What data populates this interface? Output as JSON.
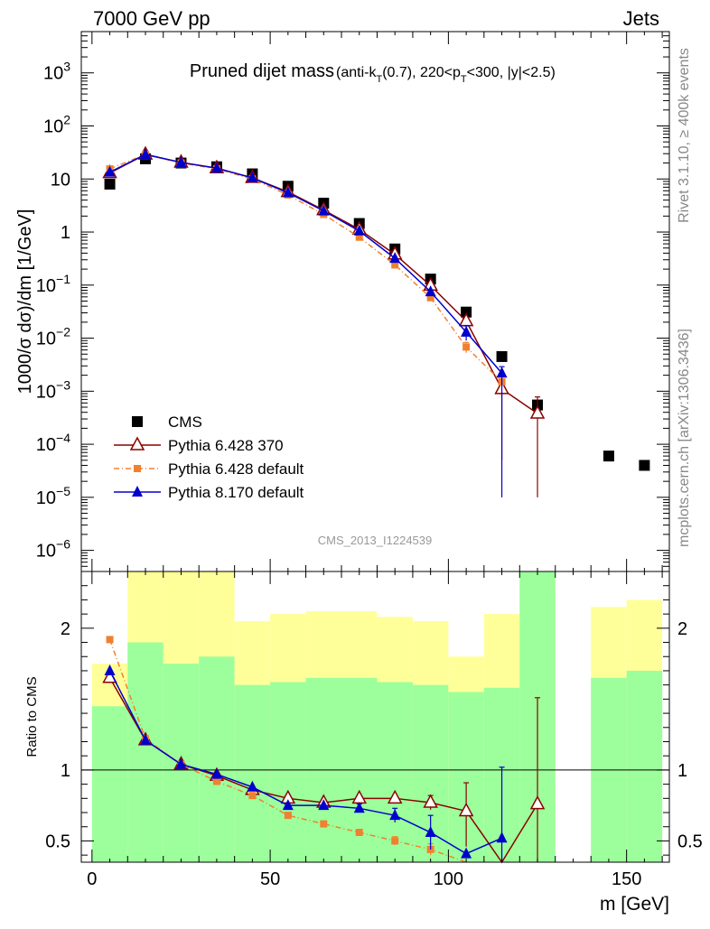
{
  "header": {
    "left": "7000 GeV pp",
    "right": "Jets"
  },
  "side_labels": {
    "rivet": "Rivet 3.1.10, ≥ 400k events",
    "source": "mcplots.cern.ch [arXiv:1306.3436]"
  },
  "chart_data": [
    {
      "type": "scatter",
      "panel": "main",
      "title": "Pruned dijet mass",
      "title_cut": {
        "pre": "(anti-k",
        "sub1": "T",
        "mid": "(0.7), 220<p",
        "sub2": "T",
        "post": "<300, |y|<2.5)"
      },
      "watermark": "CMS_2013_I1224539",
      "ylabel": "1000/σ dσ)/dm [1/GeV]",
      "yscale": "log",
      "xlim": [
        -3,
        162
      ],
      "ylim": [
        4e-07,
        6000
      ],
      "x_ticks": [
        0,
        50,
        100,
        150
      ],
      "y_ticks": [
        {
          "v": 1e-06,
          "base": "10",
          "exp": "−6"
        },
        {
          "v": 1e-05,
          "base": "10",
          "exp": "−5"
        },
        {
          "v": 0.0001,
          "base": "10",
          "exp": "−4"
        },
        {
          "v": 0.001,
          "base": "10",
          "exp": "−3"
        },
        {
          "v": 0.01,
          "base": "10",
          "exp": "−2"
        },
        {
          "v": 0.1,
          "base": "10",
          "exp": "−1"
        },
        {
          "v": 1,
          "base": "1",
          "exp": ""
        },
        {
          "v": 10,
          "base": "10",
          "exp": ""
        },
        {
          "v": 100,
          "base": "10",
          "exp": "2"
        },
        {
          "v": 1000,
          "base": "10",
          "exp": "3"
        }
      ],
      "series": [
        {
          "name": "CMS",
          "color": "#000000",
          "x": [
            5,
            15,
            25,
            35,
            45,
            55,
            65,
            75,
            85,
            95,
            105,
            115,
            125,
            145,
            155
          ],
          "y": [
            8.0,
            24.0,
            20.0,
            17.0,
            12.5,
            7.3,
            3.5,
            1.45,
            0.48,
            0.13,
            0.031,
            0.0045,
            0.00055,
            6e-05,
            4e-05
          ]
        },
        {
          "name": "Pythia 6.428 370",
          "color": "#8b0000",
          "x": [
            5,
            15,
            25,
            35,
            45,
            55,
            65,
            75,
            85,
            95,
            105,
            115,
            125
          ],
          "y": [
            13.0,
            29.0,
            20.5,
            16.0,
            10.5,
            5.7,
            2.6,
            1.12,
            0.38,
            0.098,
            0.021,
            0.0011,
            0.00038
          ],
          "err_low": [
            null,
            null,
            null,
            null,
            null,
            null,
            null,
            null,
            null,
            null,
            0.004,
            0.00105,
            0.00037
          ],
          "err_high": [
            null,
            null,
            null,
            null,
            null,
            null,
            null,
            null,
            null,
            null,
            0.004,
            0.0005,
            0.0004
          ]
        },
        {
          "name": "Pythia 6.428 default",
          "color": "#f08030",
          "x": [
            5,
            15,
            25,
            35,
            45,
            55,
            65,
            75,
            85,
            95,
            105,
            115
          ],
          "y": [
            15.5,
            29.0,
            20.0,
            15.5,
            10.0,
            5.0,
            2.15,
            0.8,
            0.24,
            0.058,
            0.0068,
            0.0015
          ],
          "err_low": [
            null,
            null,
            null,
            null,
            null,
            null,
            null,
            null,
            null,
            null,
            0.0015,
            null
          ],
          "err_high": [
            null,
            null,
            null,
            null,
            null,
            null,
            null,
            null,
            null,
            null,
            0.0015,
            null
          ]
        },
        {
          "name": "Pythia 8.170 default",
          "color": "#0000cc",
          "x": [
            5,
            15,
            25,
            35,
            45,
            55,
            65,
            75,
            85,
            95,
            105,
            115
          ],
          "y": [
            13.5,
            29.0,
            20.5,
            16.0,
            10.5,
            5.5,
            2.5,
            1.05,
            0.32,
            0.075,
            0.013,
            0.0022
          ],
          "err_low": [
            null,
            null,
            null,
            null,
            null,
            null,
            null,
            null,
            null,
            null,
            0.004,
            0.00219
          ],
          "err_high": [
            null,
            null,
            null,
            null,
            null,
            null,
            null,
            null,
            null,
            null,
            0.004,
            0.0007
          ]
        }
      ]
    },
    {
      "type": "line",
      "panel": "ratio",
      "ylabel": "Ratio to CMS",
      "xlabel": "m [GeV]",
      "xlim": [
        -3,
        162
      ],
      "ylim": [
        0.35,
        2.4
      ],
      "y_ticks": [
        0.5,
        1,
        2
      ],
      "reference": 1.0,
      "bands": {
        "x_edges": [
          [
            0,
            10
          ],
          [
            10,
            20
          ],
          [
            20,
            30
          ],
          [
            30,
            40
          ],
          [
            40,
            50
          ],
          [
            50,
            60
          ],
          [
            60,
            70
          ],
          [
            70,
            80
          ],
          [
            80,
            90
          ],
          [
            90,
            100
          ],
          [
            100,
            110
          ],
          [
            110,
            120
          ],
          [
            120,
            130
          ],
          [
            140,
            150
          ],
          [
            150,
            160
          ]
        ],
        "green_low": [
          0.35,
          0.35,
          0.35,
          0.35,
          0.35,
          0.35,
          0.35,
          0.35,
          0.35,
          0.35,
          0.35,
          0.35,
          0.35,
          0.35,
          0.35
        ],
        "green_high": [
          1.45,
          1.9,
          1.75,
          1.8,
          1.6,
          1.62,
          1.65,
          1.65,
          1.62,
          1.6,
          1.55,
          1.58,
          2.4,
          1.65,
          1.7
        ],
        "yellow_low": [
          0.35,
          0.35,
          0.35,
          0.35,
          0.48,
          0.45,
          0.45,
          0.45,
          0.45,
          0.42,
          0.35,
          0.35,
          0.35,
          0.35,
          0.35
        ],
        "yellow_high": [
          1.75,
          2.4,
          2.4,
          2.4,
          2.05,
          2.1,
          2.12,
          2.12,
          2.08,
          2.05,
          1.8,
          2.1,
          2.4,
          2.15,
          2.2
        ],
        "green_color": "#9cff9c",
        "yellow_color": "#ffff99"
      },
      "series": [
        {
          "name": "Pythia 6.428 370",
          "color": "#8b0000",
          "x": [
            5,
            15,
            25,
            35,
            45,
            55,
            65,
            75,
            85,
            95,
            105,
            115,
            125
          ],
          "y": [
            1.65,
            1.21,
            1.04,
            0.96,
            0.86,
            0.8,
            0.77,
            0.8,
            0.8,
            0.77,
            0.71,
            0.24,
            0.76
          ],
          "err_low": [
            null,
            null,
            null,
            null,
            null,
            null,
            null,
            null,
            null,
            0.05,
            0.25,
            null,
            0.5
          ],
          "err_high": [
            null,
            null,
            null,
            null,
            null,
            null,
            null,
            null,
            null,
            0.05,
            0.2,
            null,
            0.75
          ]
        },
        {
          "name": "Pythia 6.428 default",
          "color": "#f08030",
          "x": [
            5,
            15,
            25,
            35,
            45,
            55,
            65,
            75,
            85,
            95,
            105
          ],
          "y": [
            1.92,
            1.22,
            1.04,
            0.92,
            0.82,
            0.68,
            0.62,
            0.56,
            0.5,
            0.44,
            0.22
          ],
          "err_low": [
            null,
            null,
            null,
            null,
            null,
            null,
            null,
            null,
            0.03,
            0.04,
            null
          ],
          "err_high": [
            null,
            null,
            null,
            null,
            null,
            null,
            null,
            null,
            0.03,
            0.04,
            null
          ]
        },
        {
          "name": "Pythia 8.170 default",
          "color": "#0000cc",
          "x": [
            5,
            15,
            25,
            35,
            45,
            55,
            65,
            75,
            85,
            95,
            105,
            115
          ],
          "y": [
            1.7,
            1.21,
            1.04,
            0.97,
            0.88,
            0.75,
            0.75,
            0.73,
            0.68,
            0.56,
            0.41,
            0.52
          ],
          "err_low": [
            null,
            null,
            null,
            null,
            null,
            null,
            null,
            0.03,
            0.05,
            0.12,
            null,
            0.17
          ],
          "err_high": [
            null,
            null,
            null,
            null,
            null,
            null,
            null,
            0.03,
            0.05,
            0.12,
            null,
            0.5
          ]
        }
      ]
    }
  ]
}
